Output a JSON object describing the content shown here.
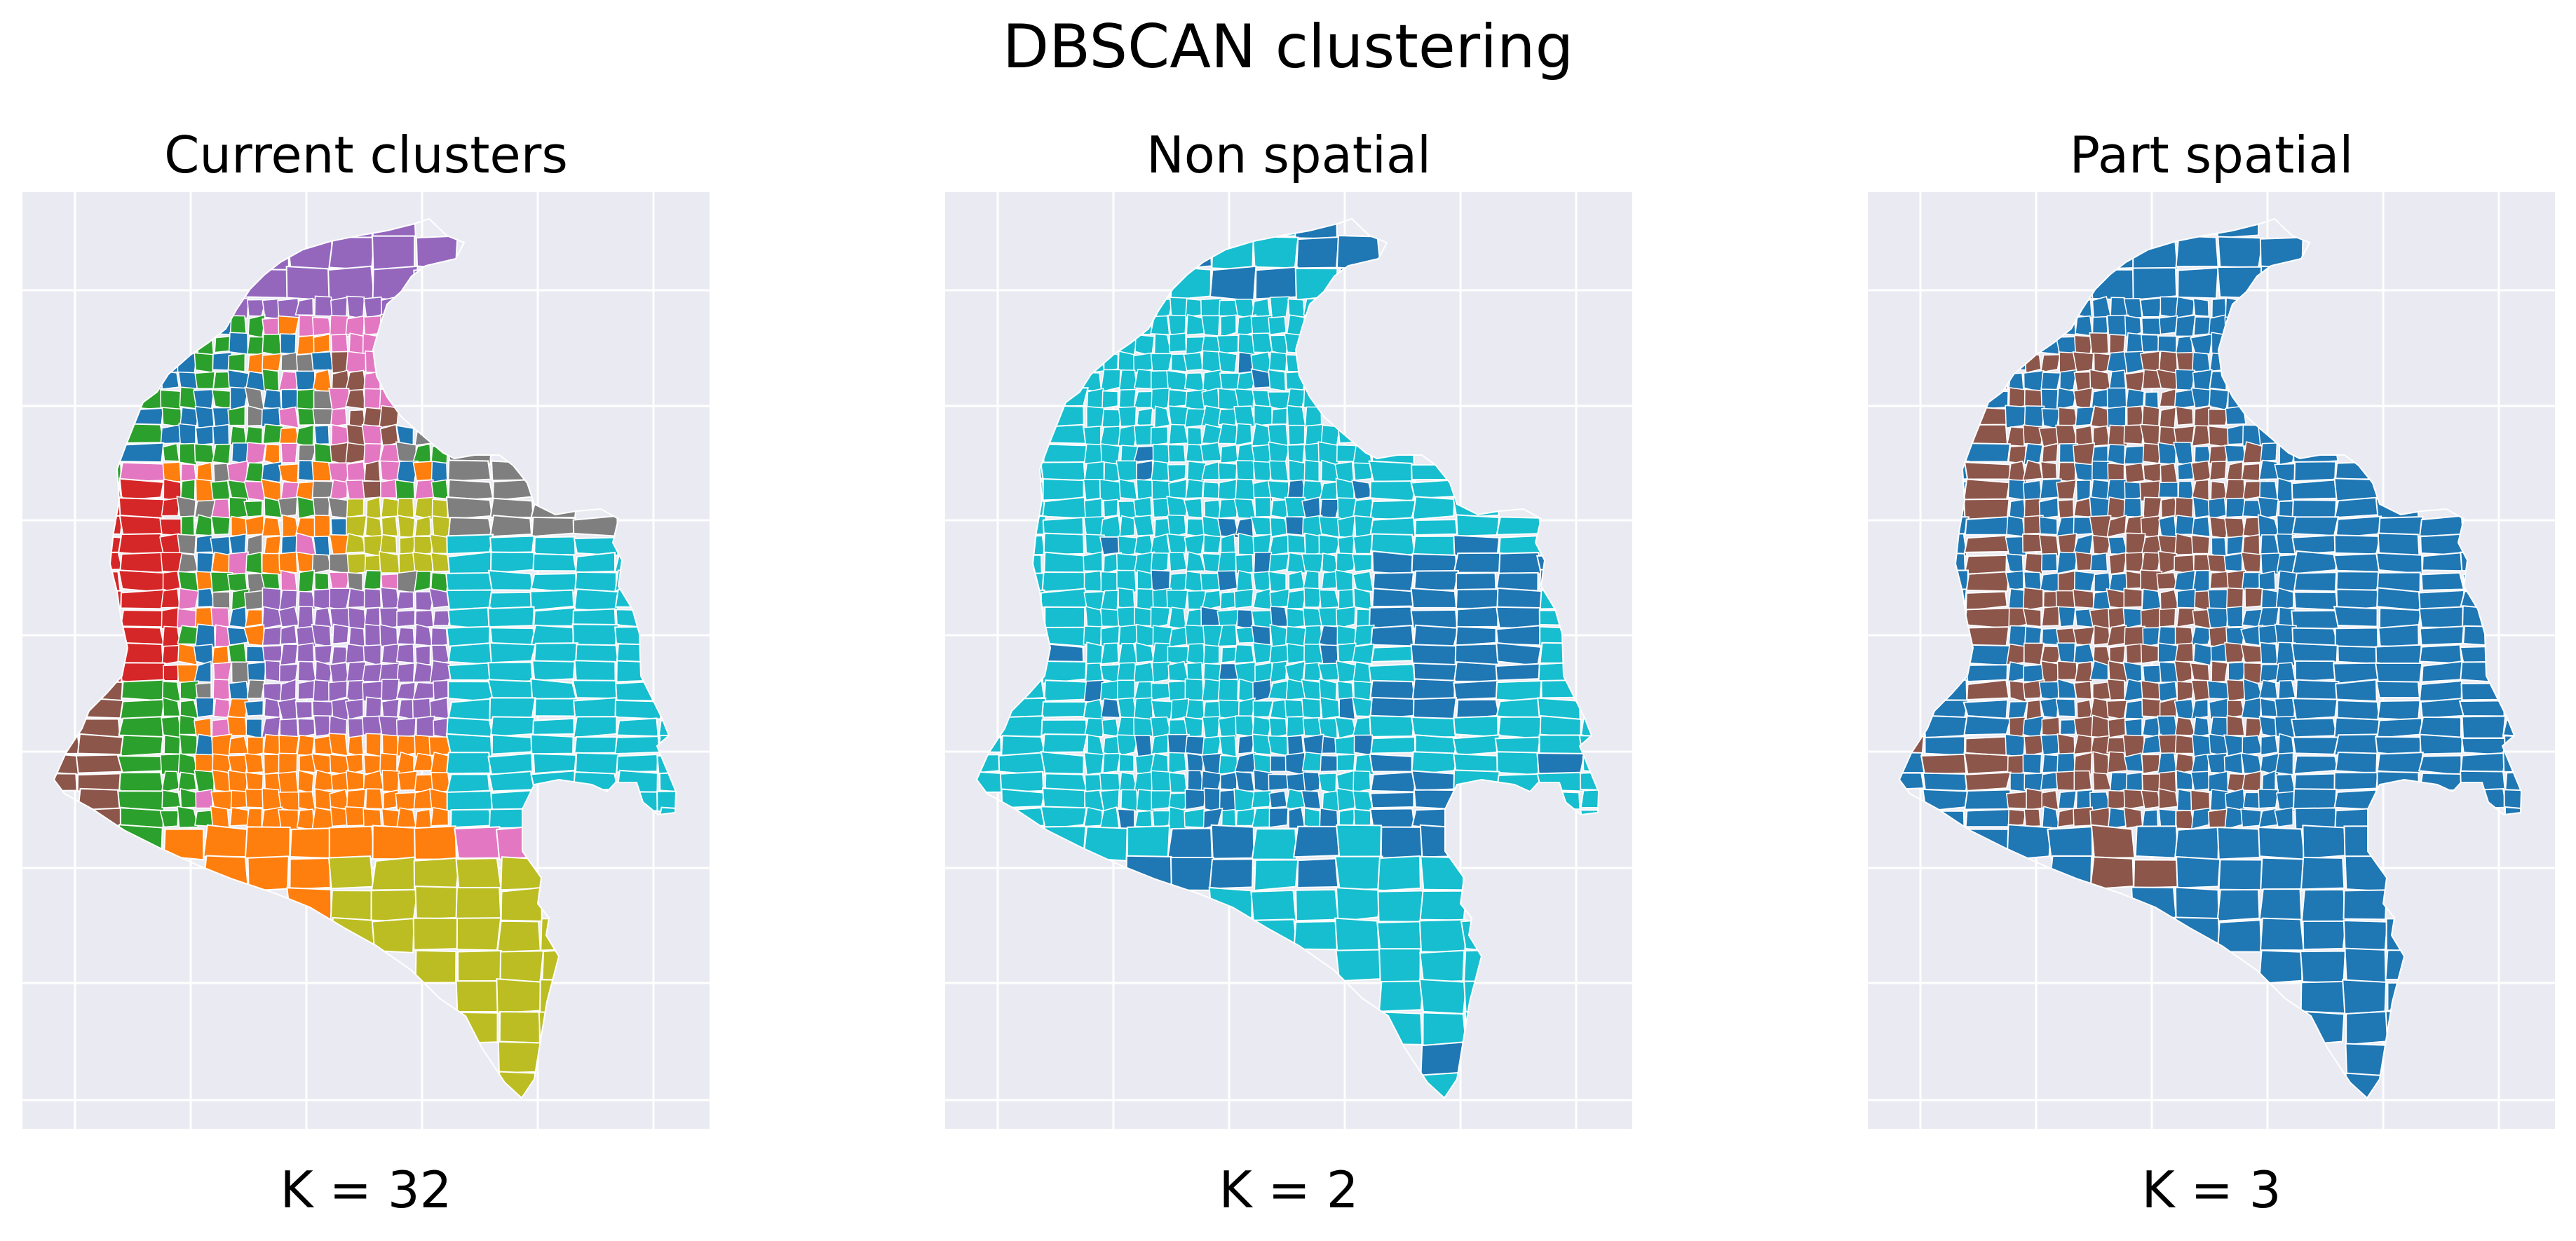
{
  "chart_data": {
    "title": "DBSCAN clustering",
    "type": "choropleth-map",
    "grid": true,
    "axes_background": "#eaeaf2",
    "panels": [
      {
        "title": "Current clusters",
        "caption": "K = 32",
        "clusters_shown": 32,
        "palette": [
          "#9467bd",
          "#1f77b4",
          "#2ca02c",
          "#e377c2",
          "#8c564b",
          "#d62728",
          "#7f7f7f",
          "#ff7f0e",
          "#bcbd22",
          "#17becf"
        ]
      },
      {
        "title": "Non spatial",
        "caption": "K = 2",
        "clusters_shown": 2,
        "palette": [
          "#17becf",
          "#1f77b4"
        ]
      },
      {
        "title": "Part spatial",
        "caption": "K = 3",
        "clusters_shown": 3,
        "palette": [
          "#1f77b4",
          "#8c564b",
          "#17becf"
        ]
      }
    ]
  }
}
